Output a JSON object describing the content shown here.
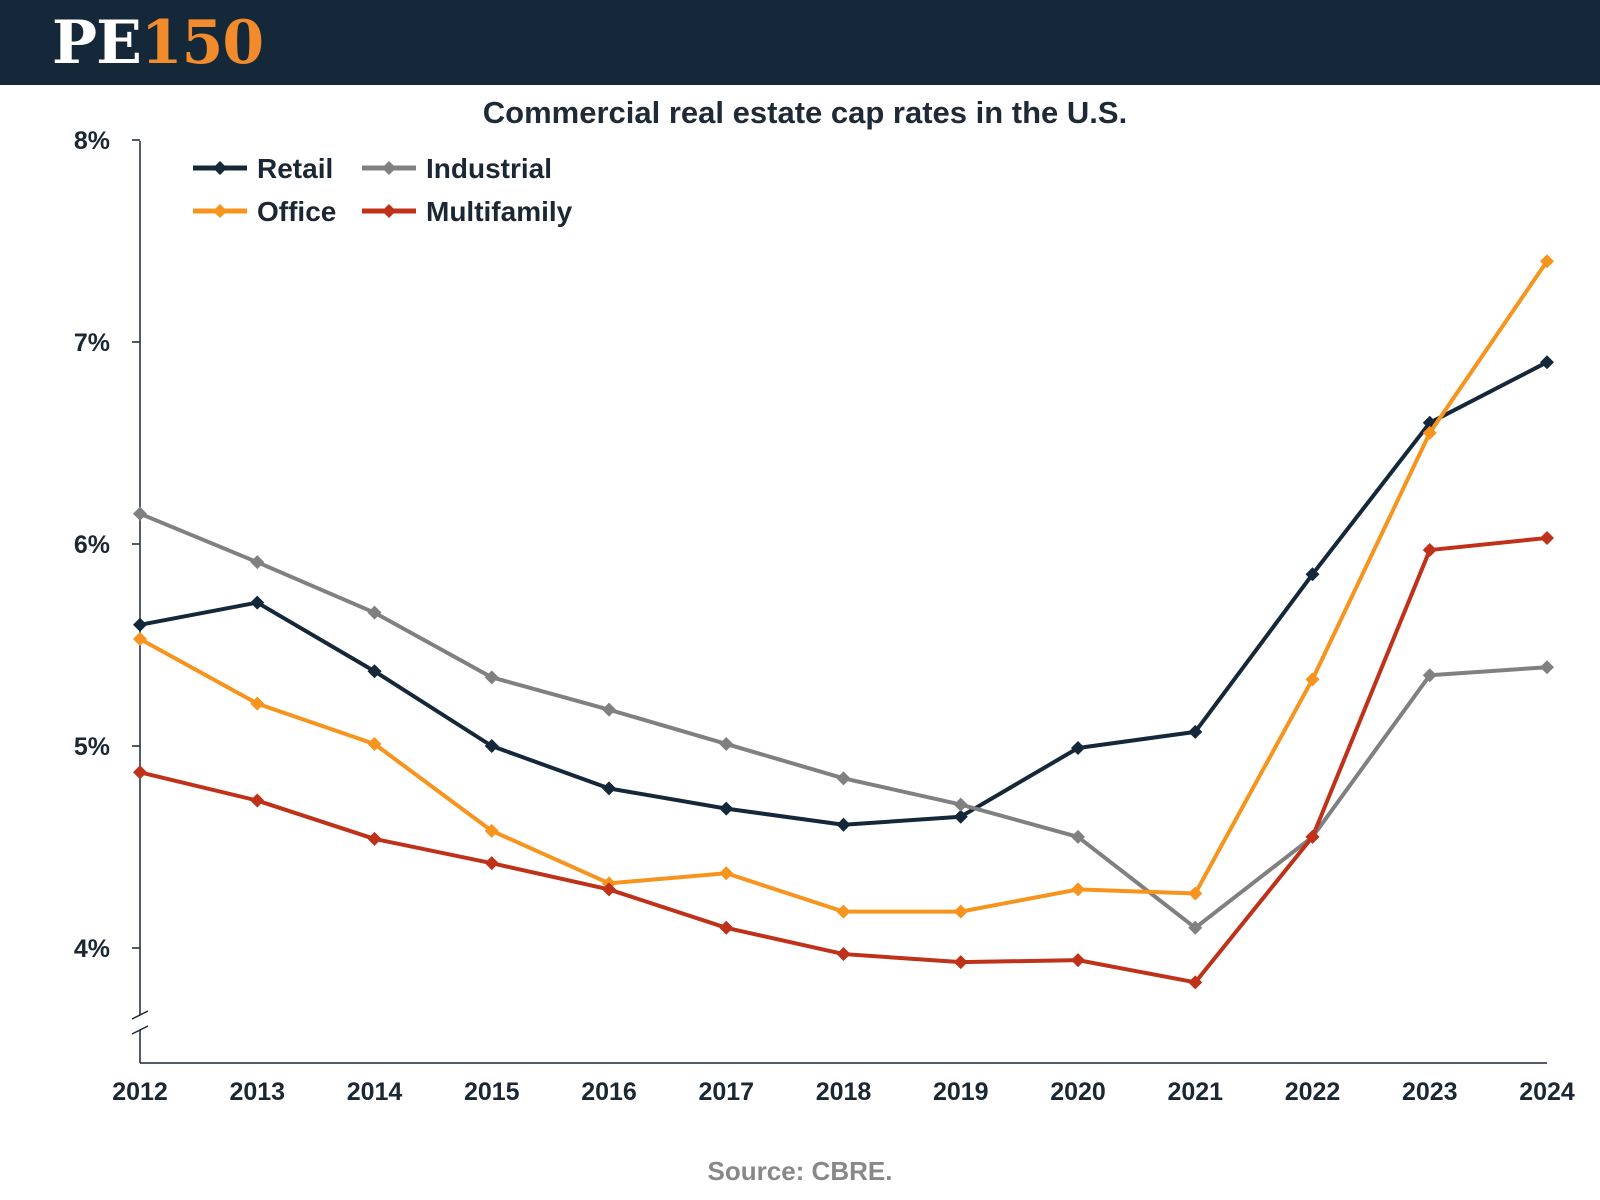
{
  "header": {
    "logo_letters": "PE",
    "logo_number": "150",
    "bar_color": "#14283a",
    "accent_color": "#f28b2c"
  },
  "chart_data": {
    "type": "line",
    "title": "Commercial real estate cap rates in the U.S.",
    "xlabel": "",
    "ylabel": "",
    "x": [
      "2012",
      "2013",
      "2014",
      "2015",
      "2016",
      "2017",
      "2018",
      "2019",
      "2020",
      "2021",
      "2022",
      "2023",
      "2024"
    ],
    "y_ticks": [
      "4%",
      "5%",
      "6%",
      "7%",
      "8%"
    ],
    "y_tick_values": [
      4,
      5,
      6,
      7,
      8
    ],
    "ylim": [
      3.4,
      8
    ],
    "axis_break": true,
    "grid": false,
    "legend_position": "top-left",
    "series": [
      {
        "name": "Retail",
        "color": "#14283a",
        "values": [
          5.6,
          5.71,
          5.37,
          5.0,
          4.79,
          4.69,
          4.61,
          4.65,
          4.99,
          5.07,
          5.85,
          6.6,
          6.9
        ]
      },
      {
        "name": "Industrial",
        "color": "#808080",
        "values": [
          6.15,
          5.91,
          5.66,
          5.34,
          5.18,
          5.01,
          4.84,
          4.71,
          4.55,
          4.1,
          4.55,
          5.35,
          5.39
        ]
      },
      {
        "name": "Office",
        "color": "#f7941d",
        "values": [
          5.53,
          5.21,
          5.01,
          4.58,
          4.32,
          4.37,
          4.18,
          4.18,
          4.29,
          4.27,
          5.33,
          6.55,
          7.4
        ]
      },
      {
        "name": "Multifamily",
        "color": "#c0311a",
        "values": [
          4.87,
          4.73,
          4.54,
          4.42,
          4.29,
          4.1,
          3.97,
          3.93,
          3.94,
          3.83,
          4.55,
          5.97,
          6.03
        ]
      }
    ]
  },
  "footer": {
    "source": "Source: CBRE."
  }
}
